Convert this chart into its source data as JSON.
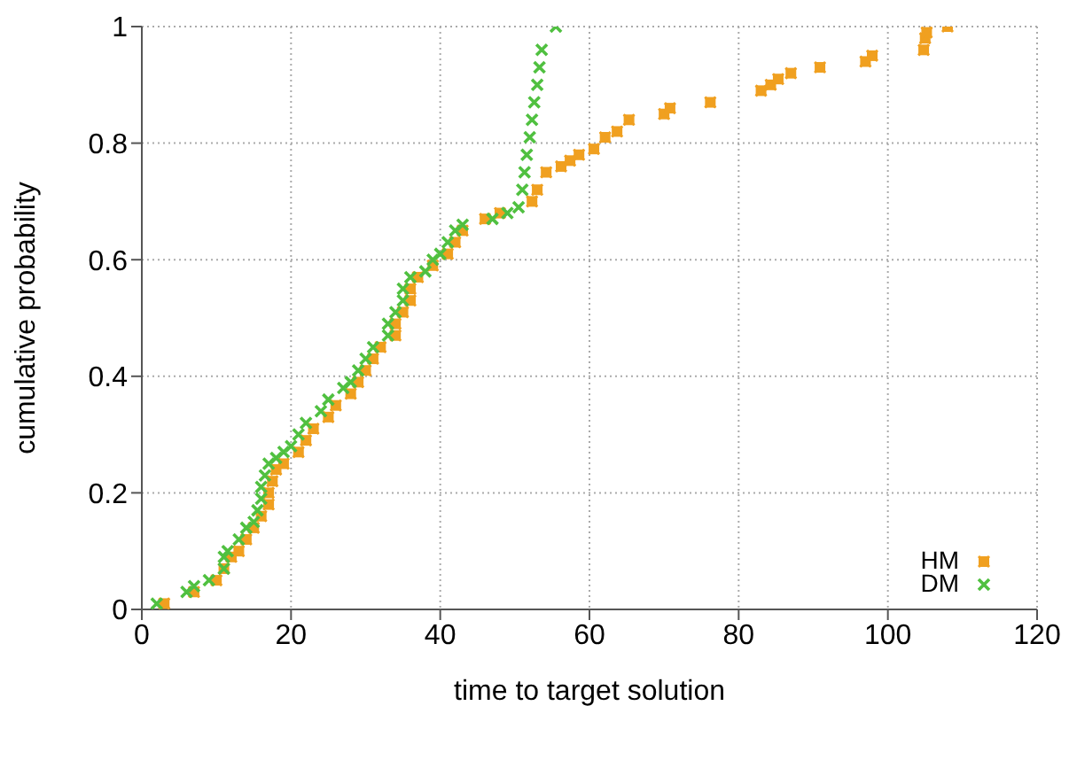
{
  "chart_data": {
    "type": "scatter",
    "xlabel": "time to target solution",
    "ylabel": "cumulative probability",
    "xlim": [
      0,
      120
    ],
    "ylim": [
      0,
      1
    ],
    "xticks": [
      0,
      20,
      40,
      60,
      80,
      100,
      120
    ],
    "yticks": [
      0,
      0.2,
      0.4,
      0.6,
      0.8,
      1
    ],
    "grid": true,
    "legend": "bottom right",
    "series": [
      {
        "name": "HM",
        "color": "#f0a020",
        "marker": "square",
        "x": [
          3,
          7,
          10,
          11,
          12,
          13,
          14,
          15,
          16,
          17,
          17,
          17.5,
          18,
          19,
          21,
          22,
          23,
          25,
          26,
          28,
          29,
          30,
          31,
          32,
          34,
          34,
          35,
          36,
          36,
          37,
          39,
          41,
          42,
          43,
          46,
          48,
          52.3,
          53,
          54.2,
          56.2,
          57.4,
          58.6,
          60.6,
          62.1,
          63.7,
          65.3,
          70,
          70.8,
          76.2,
          83,
          84.3,
          85.3,
          87,
          90.9,
          97,
          97.9,
          104.8,
          105,
          105.2,
          108
        ],
        "values": [
          0.01,
          0.03,
          0.05,
          0.07,
          0.09,
          0.1,
          0.12,
          0.14,
          0.16,
          0.18,
          0.2,
          0.22,
          0.24,
          0.25,
          0.27,
          0.29,
          0.31,
          0.33,
          0.35,
          0.37,
          0.39,
          0.41,
          0.43,
          0.45,
          0.47,
          0.49,
          0.51,
          0.53,
          0.55,
          0.57,
          0.59,
          0.61,
          0.63,
          0.65,
          0.67,
          0.68,
          0.7,
          0.72,
          0.75,
          0.76,
          0.77,
          0.78,
          0.79,
          0.81,
          0.82,
          0.84,
          0.85,
          0.86,
          0.87,
          0.89,
          0.9,
          0.91,
          0.92,
          0.93,
          0.94,
          0.95,
          0.96,
          0.98,
          0.99,
          1
        ]
      },
      {
        "name": "DM",
        "color": "#50c040",
        "marker": "cross",
        "x": [
          2,
          6,
          7,
          9,
          11,
          11,
          11.5,
          13,
          14,
          15,
          15.5,
          16,
          16,
          16.5,
          17,
          18,
          19,
          20,
          21,
          22,
          24,
          25,
          27,
          28,
          29,
          30,
          31,
          33,
          33,
          34,
          35,
          35,
          36,
          38,
          39,
          40,
          41,
          42,
          43,
          47,
          49,
          50.5,
          51,
          51.3,
          51.6,
          52,
          52.3,
          52.6,
          53,
          53.3,
          53.6,
          55.5
        ],
        "values": [
          0.01,
          0.03,
          0.04,
          0.05,
          0.07,
          0.09,
          0.1,
          0.12,
          0.14,
          0.15,
          0.17,
          0.19,
          0.21,
          0.23,
          0.25,
          0.26,
          0.27,
          0.28,
          0.3,
          0.32,
          0.34,
          0.36,
          0.38,
          0.39,
          0.41,
          0.43,
          0.45,
          0.47,
          0.49,
          0.51,
          0.53,
          0.55,
          0.57,
          0.58,
          0.6,
          0.61,
          0.63,
          0.65,
          0.66,
          0.67,
          0.68,
          0.69,
          0.72,
          0.75,
          0.78,
          0.81,
          0.84,
          0.87,
          0.9,
          0.93,
          0.96,
          1
        ]
      }
    ]
  }
}
